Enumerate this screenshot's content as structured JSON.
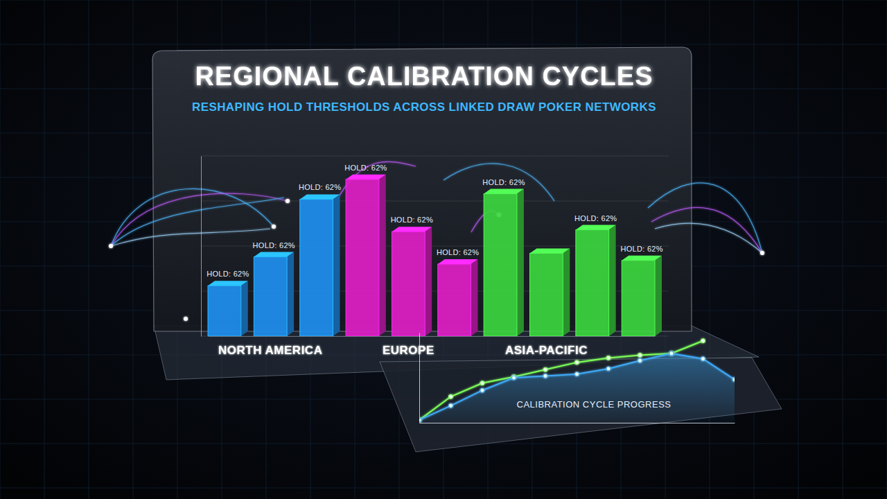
{
  "chart_data": [
    {
      "type": "bar",
      "title": "REGIONAL CALIBRATION CYCLES",
      "subtitle": "RESHAPING HOLD THRESHOLDS ACROSS LINKED DRAW POKER NETWORKS",
      "categories": [
        null,
        "NORTH AMERICA",
        null,
        null,
        "EUROPE",
        null,
        null,
        "ASIA-PACIFIC",
        null,
        null
      ],
      "values": [
        28,
        44,
        76,
        87,
        58,
        40,
        79,
        46,
        59,
        42
      ],
      "colors": [
        "#1f8ff0",
        "#1f8ff0",
        "#1f8ff0",
        "#e01fc6",
        "#e01fc6",
        "#e01fc6",
        "#3cd63f",
        "#3cd63f",
        "#3cd63f",
        "#3cd63f"
      ],
      "annotations": [
        "HOLD: 62%",
        "HOLD: 62%",
        "HOLD: 62%",
        "HOLD: 62%",
        "HOLD: 62%",
        "HOLD: 62%",
        "HOLD: 62%",
        null,
        "HOLD: 62%",
        "HOLD: 62%"
      ],
      "ylim": [
        0,
        100
      ],
      "yticks": [
        0,
        25,
        50,
        75,
        100
      ],
      "grid": true,
      "tick_labels": "x"
    },
    {
      "type": "line",
      "xlabel": "CALIBRATION CYCLE PROGRESS",
      "x": [
        0,
        1,
        2,
        3,
        4,
        5,
        6,
        7,
        8,
        9,
        10
      ],
      "xlim": [
        0,
        10
      ],
      "ylim": [
        0,
        100
      ],
      "tick_labels": false,
      "series": [
        {
          "color": "#7dff5a",
          "marker": "circle",
          "values": [
            3,
            29,
            44,
            51,
            59,
            67,
            72,
            75,
            77,
            91,
            null
          ]
        },
        {
          "color": "#3fa9f5",
          "type": "area",
          "marker": "circle",
          "values": [
            3,
            19,
            36,
            50,
            52,
            54,
            60,
            69,
            77,
            71,
            48
          ]
        }
      ]
    }
  ]
}
